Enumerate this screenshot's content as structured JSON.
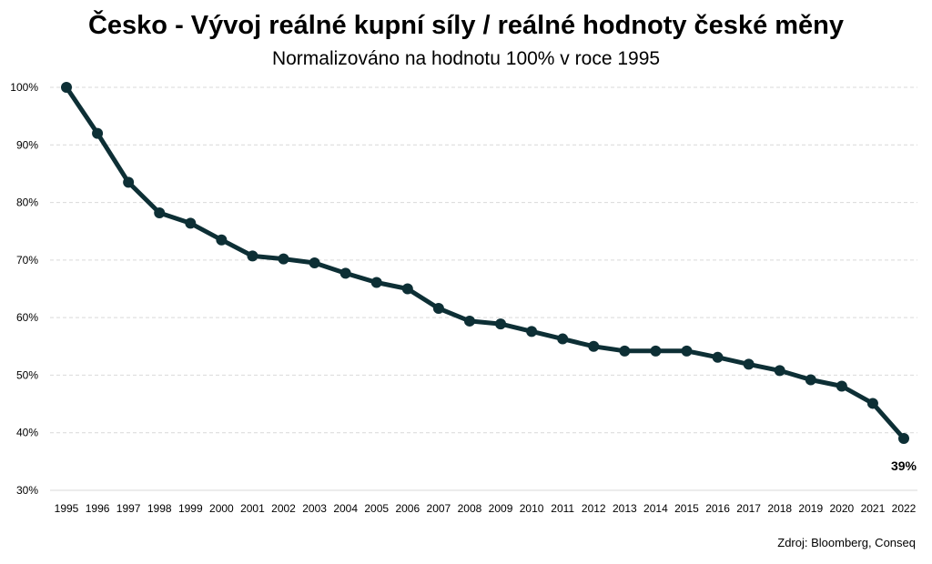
{
  "chart_data": {
    "type": "line",
    "title": "Česko - Vývoj reálné kupní síly / reálné hodnoty české měny",
    "subtitle": "Normalizováno na hodnotu 100% v roce 1995",
    "x": [
      "1995",
      "1996",
      "1997",
      "1998",
      "1999",
      "2000",
      "2001",
      "2002",
      "2003",
      "2004",
      "2005",
      "2006",
      "2007",
      "2008",
      "2009",
      "2010",
      "2011",
      "2012",
      "2013",
      "2014",
      "2015",
      "2016",
      "2017",
      "2018",
      "2019",
      "2020",
      "2021",
      "2022"
    ],
    "series": [
      {
        "values": [
          100,
          92,
          83.5,
          78.2,
          76.4,
          73.5,
          70.7,
          70.2,
          69.5,
          67.7,
          66.1,
          65,
          61.6,
          59.4,
          58.9,
          57.6,
          56.3,
          55,
          54.2,
          54.2,
          54.2,
          53.1,
          51.9,
          50.8,
          49.2,
          48.1,
          45.1,
          39
        ]
      }
    ],
    "ylim": [
      30,
      100
    ],
    "yticks": [
      "30%",
      "40%",
      "50%",
      "60%",
      "70%",
      "80%",
      "90%",
      "100%"
    ],
    "ytick_values": [
      30,
      40,
      50,
      60,
      70,
      80,
      90,
      100
    ],
    "grid": true,
    "annotations": [
      {
        "x": "2022",
        "text": "39%"
      }
    ],
    "line_color": "#0d2f35",
    "grid_color": "#d9d9d9",
    "source": "Zdroj: Bloomberg, Conseq"
  }
}
